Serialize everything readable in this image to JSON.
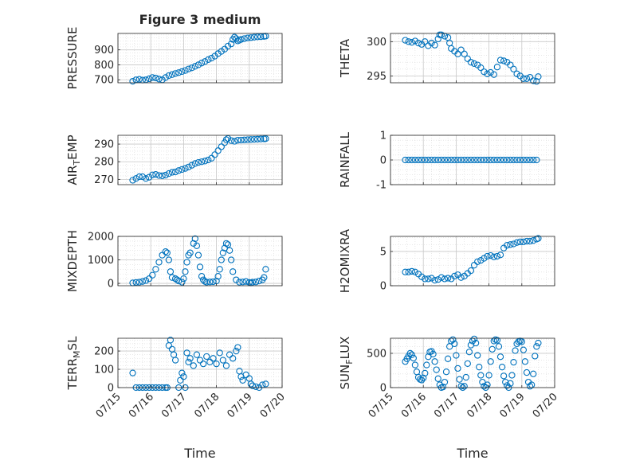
{
  "figure_title": "Figure 3 medium",
  "chart_data": [
    {
      "id": "pressure",
      "type": "scatter",
      "ylabel": "PRESSURE",
      "title": "Figure 3 medium",
      "xlim": [
        "07/15",
        "07/20"
      ],
      "ylim": [
        680,
        1010
      ],
      "yticks": [
        700,
        800,
        900
      ],
      "ytick_labels": [
        "700",
        "800",
        "900"
      ],
      "x_tick_labels": [
        "",
        "",
        "",
        "",
        "",
        ""
      ],
      "xlabel": "",
      "grid": true,
      "x": [
        0.45,
        0.55,
        0.65,
        0.75,
        0.85,
        0.95,
        1.05,
        1.15,
        1.25,
        1.35,
        1.45,
        1.55,
        1.65,
        1.75,
        1.85,
        1.95,
        2.05,
        2.15,
        2.25,
        2.35,
        2.45,
        2.55,
        2.65,
        2.75,
        2.85,
        2.95,
        3.05,
        3.15,
        3.25,
        3.35,
        3.45,
        3.5,
        3.55,
        3.6,
        3.65,
        3.7,
        3.75,
        3.85,
        3.95,
        4.05,
        4.15,
        4.25,
        4.35,
        4.45,
        4.5
      ],
      "values": [
        690,
        700,
        703,
        698,
        700,
        707,
        715,
        712,
        705,
        700,
        715,
        728,
        735,
        742,
        748,
        755,
        762,
        772,
        780,
        790,
        800,
        812,
        822,
        835,
        845,
        858,
        875,
        890,
        905,
        925,
        940,
        970,
        985,
        975,
        960,
        965,
        970,
        975,
        980,
        982,
        985,
        987,
        988,
        990,
        992
      ]
    },
    {
      "id": "theta",
      "type": "scatter",
      "ylabel": "THETA",
      "xlim": [
        "07/15",
        "07/20"
      ],
      "ylim": [
        294,
        301.2
      ],
      "yticks": [
        295,
        300
      ],
      "ytick_labels": [
        "295",
        "300"
      ],
      "x_tick_labels": [
        "",
        "",
        "",
        "",
        "",
        ""
      ],
      "xlabel": "",
      "grid": true,
      "x": [
        0.45,
        0.55,
        0.65,
        0.75,
        0.85,
        0.95,
        1.05,
        1.15,
        1.25,
        1.35,
        1.45,
        1.5,
        1.55,
        1.65,
        1.75,
        1.8,
        1.85,
        1.95,
        2.05,
        2.15,
        2.25,
        2.35,
        2.45,
        2.55,
        2.65,
        2.75,
        2.85,
        2.95,
        3.05,
        3.15,
        3.25,
        3.35,
        3.45,
        3.55,
        3.65,
        3.75,
        3.85,
        3.95,
        4.05,
        4.15,
        4.25,
        4.35,
        4.45,
        4.5
      ],
      "values": [
        300.2,
        300.0,
        299.9,
        300.1,
        299.8,
        299.6,
        300.0,
        299.4,
        299.8,
        299.5,
        300.4,
        301.0,
        301.0,
        300.8,
        300.6,
        299.8,
        299.0,
        298.6,
        298.2,
        298.8,
        298.2,
        297.5,
        297.0,
        296.8,
        296.6,
        296.2,
        295.6,
        295.3,
        295.5,
        295.2,
        296.3,
        297.3,
        297.2,
        297.0,
        296.6,
        296.0,
        295.3,
        295.0,
        294.6,
        294.6,
        294.8,
        294.3,
        294.2,
        294.9
      ]
    },
    {
      "id": "air_temp",
      "type": "scatter",
      "ylabel": "AIR_TEMP",
      "xlim": [
        "07/15",
        "07/20"
      ],
      "ylim": [
        267,
        295
      ],
      "yticks": [
        270,
        280,
        290
      ],
      "ytick_labels": [
        "270",
        "280",
        "290"
      ],
      "x_tick_labels": [
        "",
        "",
        "",
        "",
        "",
        ""
      ],
      "xlabel": "",
      "grid": true,
      "x": [
        0.45,
        0.55,
        0.65,
        0.75,
        0.85,
        0.95,
        1.05,
        1.15,
        1.25,
        1.35,
        1.45,
        1.55,
        1.65,
        1.75,
        1.85,
        1.95,
        2.05,
        2.15,
        2.25,
        2.35,
        2.45,
        2.55,
        2.65,
        2.75,
        2.85,
        2.95,
        3.05,
        3.15,
        3.25,
        3.3,
        3.35,
        3.45,
        3.55,
        3.65,
        3.75,
        3.85,
        3.95,
        4.05,
        4.15,
        4.25,
        4.35,
        4.45,
        4.5
      ],
      "values": [
        269.5,
        270.5,
        271.5,
        271.5,
        270.5,
        271.2,
        272.5,
        272.8,
        272.2,
        272.0,
        272.4,
        273.3,
        274.0,
        274.2,
        275.0,
        275.6,
        276.2,
        277.0,
        278.0,
        279.0,
        279.6,
        280.0,
        280.4,
        281.0,
        282.0,
        284.0,
        286.3,
        288.5,
        290.8,
        292.5,
        293.2,
        292.0,
        291.6,
        292.2,
        292.3,
        292.4,
        292.5,
        292.6,
        292.7,
        292.8,
        292.9,
        293.0,
        293.1
      ]
    },
    {
      "id": "rainfall",
      "type": "scatter",
      "ylabel": "RAINFALL",
      "xlim": [
        "07/15",
        "07/20"
      ],
      "ylim": [
        -1,
        1
      ],
      "yticks": [
        -1,
        0,
        1
      ],
      "ytick_labels": [
        "-1",
        "0",
        "1"
      ],
      "x_tick_labels": [
        "",
        "",
        "",
        "",
        "",
        ""
      ],
      "xlabel": "",
      "grid": true,
      "x": [
        0.45,
        0.55,
        0.65,
        0.75,
        0.85,
        0.95,
        1.05,
        1.15,
        1.25,
        1.35,
        1.45,
        1.55,
        1.65,
        1.75,
        1.85,
        1.95,
        2.05,
        2.15,
        2.25,
        2.35,
        2.45,
        2.55,
        2.65,
        2.75,
        2.85,
        2.95,
        3.05,
        3.15,
        3.25,
        3.35,
        3.45,
        3.55,
        3.65,
        3.75,
        3.85,
        3.95,
        4.05,
        4.15,
        4.25,
        4.35,
        4.45
      ],
      "values": [
        0,
        0,
        0,
        0,
        0,
        0,
        0,
        0,
        0,
        0,
        0,
        0,
        0,
        0,
        0,
        0,
        0,
        0,
        0,
        0,
        0,
        0,
        0,
        0,
        0,
        0,
        0,
        0,
        0,
        0,
        0,
        0,
        0,
        0,
        0,
        0,
        0,
        0,
        0,
        0,
        0
      ]
    },
    {
      "id": "mixdepth",
      "type": "scatter",
      "ylabel": "MIXDEPTH",
      "xlim": [
        "07/15",
        "07/20"
      ],
      "ylim": [
        -100,
        2000
      ],
      "yticks": [
        0,
        1000,
        2000
      ],
      "ytick_labels": [
        "0",
        "1000",
        "2000"
      ],
      "x_tick_labels": [
        "",
        "",
        "",
        "",
        "",
        ""
      ],
      "xlabel": "",
      "grid": true,
      "x": [
        0.45,
        0.55,
        0.65,
        0.75,
        0.85,
        0.95,
        1.05,
        1.15,
        1.25,
        1.35,
        1.45,
        1.5,
        1.55,
        1.6,
        1.65,
        1.75,
        1.8,
        1.85,
        1.95,
        2.0,
        2.05,
        2.1,
        2.15,
        2.2,
        2.3,
        2.35,
        2.4,
        2.45,
        2.5,
        2.55,
        2.6,
        2.65,
        2.7,
        2.8,
        2.9,
        3.0,
        3.05,
        3.1,
        3.15,
        3.2,
        3.25,
        3.3,
        3.35,
        3.4,
        3.45,
        3.5,
        3.6,
        3.7,
        3.8,
        3.9,
        4.0,
        4.05,
        4.1,
        4.2,
        4.3,
        4.4,
        4.45,
        4.5
      ],
      "values": [
        20,
        40,
        50,
        80,
        120,
        200,
        350,
        600,
        900,
        1200,
        1350,
        1300,
        1000,
        500,
        250,
        200,
        150,
        100,
        50,
        200,
        500,
        900,
        1200,
        1300,
        1700,
        1900,
        1600,
        1200,
        700,
        300,
        150,
        80,
        50,
        60,
        70,
        100,
        300,
        600,
        1000,
        1300,
        1500,
        1700,
        1650,
        1400,
        1000,
        500,
        150,
        50,
        60,
        80,
        40,
        20,
        50,
        60,
        100,
        150,
        250,
        600
      ]
    },
    {
      "id": "h2omixra",
      "type": "scatter",
      "ylabel": "H2OMIXRA",
      "xlim": [
        "07/15",
        "07/20"
      ],
      "ylim": [
        0,
        7.2
      ],
      "yticks": [
        0,
        5
      ],
      "ytick_labels": [
        "0",
        "5"
      ],
      "x_tick_labels": [
        "",
        "",
        "",
        "",
        "",
        ""
      ],
      "xlabel": "",
      "grid": true,
      "x": [
        0.45,
        0.55,
        0.65,
        0.75,
        0.85,
        0.95,
        1.05,
        1.15,
        1.25,
        1.35,
        1.45,
        1.55,
        1.65,
        1.75,
        1.85,
        1.95,
        2.05,
        2.15,
        2.25,
        2.35,
        2.45,
        2.55,
        2.65,
        2.75,
        2.85,
        2.95,
        3.05,
        3.15,
        3.25,
        3.35,
        3.45,
        3.55,
        3.65,
        3.75,
        3.85,
        3.95,
        4.05,
        4.15,
        4.25,
        4.35,
        4.45,
        4.5
      ],
      "values": [
        2.0,
        2.0,
        2.1,
        2.0,
        1.7,
        1.3,
        1.0,
        1.0,
        1.1,
        0.8,
        0.9,
        1.2,
        1.0,
        1.1,
        1.0,
        1.4,
        1.6,
        1.2,
        1.4,
        1.8,
        2.2,
        3.0,
        3.5,
        3.7,
        4.0,
        4.3,
        4.4,
        4.2,
        4.3,
        4.5,
        5.5,
        5.9,
        6.0,
        6.1,
        6.3,
        6.4,
        6.4,
        6.5,
        6.5,
        6.6,
        6.8,
        6.9
      ]
    },
    {
      "id": "terr_msl",
      "type": "scatter",
      "ylabel": "TERR_MSL",
      "xlim": [
        "07/15",
        "07/20"
      ],
      "ylim": [
        0,
        270
      ],
      "yticks": [
        0,
        100,
        200
      ],
      "ytick_labels": [
        "0",
        "100",
        "200"
      ],
      "x_tick_labels": [
        "07/15",
        "07/16",
        "07/17",
        "07/18",
        "07/19",
        "07/20"
      ],
      "xlabel": "Time",
      "grid": true,
      "x": [
        0.45,
        0.55,
        0.65,
        0.75,
        0.85,
        0.95,
        1.05,
        1.15,
        1.25,
        1.35,
        1.45,
        1.5,
        1.55,
        1.6,
        1.65,
        1.7,
        1.75,
        1.85,
        1.9,
        1.95,
        2.0,
        2.05,
        2.1,
        2.15,
        2.2,
        2.3,
        2.4,
        2.5,
        2.6,
        2.7,
        2.8,
        2.9,
        3.0,
        3.1,
        3.2,
        3.3,
        3.4,
        3.5,
        3.6,
        3.65,
        3.7,
        3.75,
        3.8,
        3.9,
        4.0,
        4.05,
        4.1,
        4.2,
        4.3,
        4.4,
        4.5
      ],
      "values": [
        80,
        0,
        0,
        0,
        0,
        0,
        0,
        0,
        0,
        0,
        0,
        0,
        230,
        260,
        210,
        180,
        150,
        0,
        40,
        80,
        60,
        0,
        190,
        140,
        160,
        120,
        180,
        150,
        130,
        170,
        140,
        160,
        130,
        190,
        150,
        120,
        180,
        160,
        200,
        220,
        90,
        60,
        40,
        70,
        50,
        20,
        10,
        5,
        0,
        15,
        20
      ]
    },
    {
      "id": "sun_flux",
      "type": "scatter",
      "ylabel": "SUN_FLUX",
      "xlim": [
        "07/15",
        "07/20"
      ],
      "ylim": [
        0,
        720
      ],
      "yticks": [
        0,
        500
      ],
      "ytick_labels": [
        "0",
        "500"
      ],
      "x_tick_labels": [
        "07/15",
        "07/16",
        "07/17",
        "07/18",
        "07/19",
        "07/20"
      ],
      "xlabel": "Time",
      "grid": true,
      "x": [
        0.45,
        0.5,
        0.55,
        0.6,
        0.65,
        0.7,
        0.75,
        0.8,
        0.85,
        0.9,
        0.95,
        1.0,
        1.05,
        1.1,
        1.15,
        1.2,
        1.25,
        1.3,
        1.35,
        1.4,
        1.45,
        1.5,
        1.55,
        1.6,
        1.65,
        1.7,
        1.75,
        1.8,
        1.85,
        1.9,
        1.95,
        2.0,
        2.05,
        2.1,
        2.15,
        2.2,
        2.25,
        2.3,
        2.35,
        2.4,
        2.45,
        2.5,
        2.55,
        2.6,
        2.65,
        2.7,
        2.75,
        2.8,
        2.85,
        2.9,
        2.95,
        3.0,
        3.05,
        3.1,
        3.15,
        3.2,
        3.25,
        3.3,
        3.35,
        3.4,
        3.45,
        3.5,
        3.55,
        3.6,
        3.65,
        3.7,
        3.75,
        3.8,
        3.85,
        3.9,
        3.95,
        4.0,
        4.05,
        4.1,
        4.15,
        4.2,
        4.25,
        4.3,
        4.35,
        4.4,
        4.45,
        4.5
      ],
      "values": [
        380,
        420,
        460,
        500,
        480,
        430,
        330,
        230,
        150,
        120,
        110,
        140,
        210,
        330,
        450,
        520,
        530,
        490,
        380,
        260,
        130,
        40,
        0,
        10,
        80,
        230,
        420,
        600,
        680,
        700,
        640,
        470,
        280,
        120,
        20,
        0,
        20,
        150,
        350,
        520,
        620,
        680,
        710,
        650,
        470,
        300,
        180,
        80,
        20,
        0,
        40,
        180,
        380,
        560,
        680,
        700,
        690,
        600,
        450,
        300,
        170,
        80,
        30,
        0,
        60,
        180,
        370,
        540,
        640,
        670,
        680,
        670,
        550,
        380,
        220,
        80,
        20,
        40,
        200,
        460,
        600,
        650
      ]
    }
  ]
}
